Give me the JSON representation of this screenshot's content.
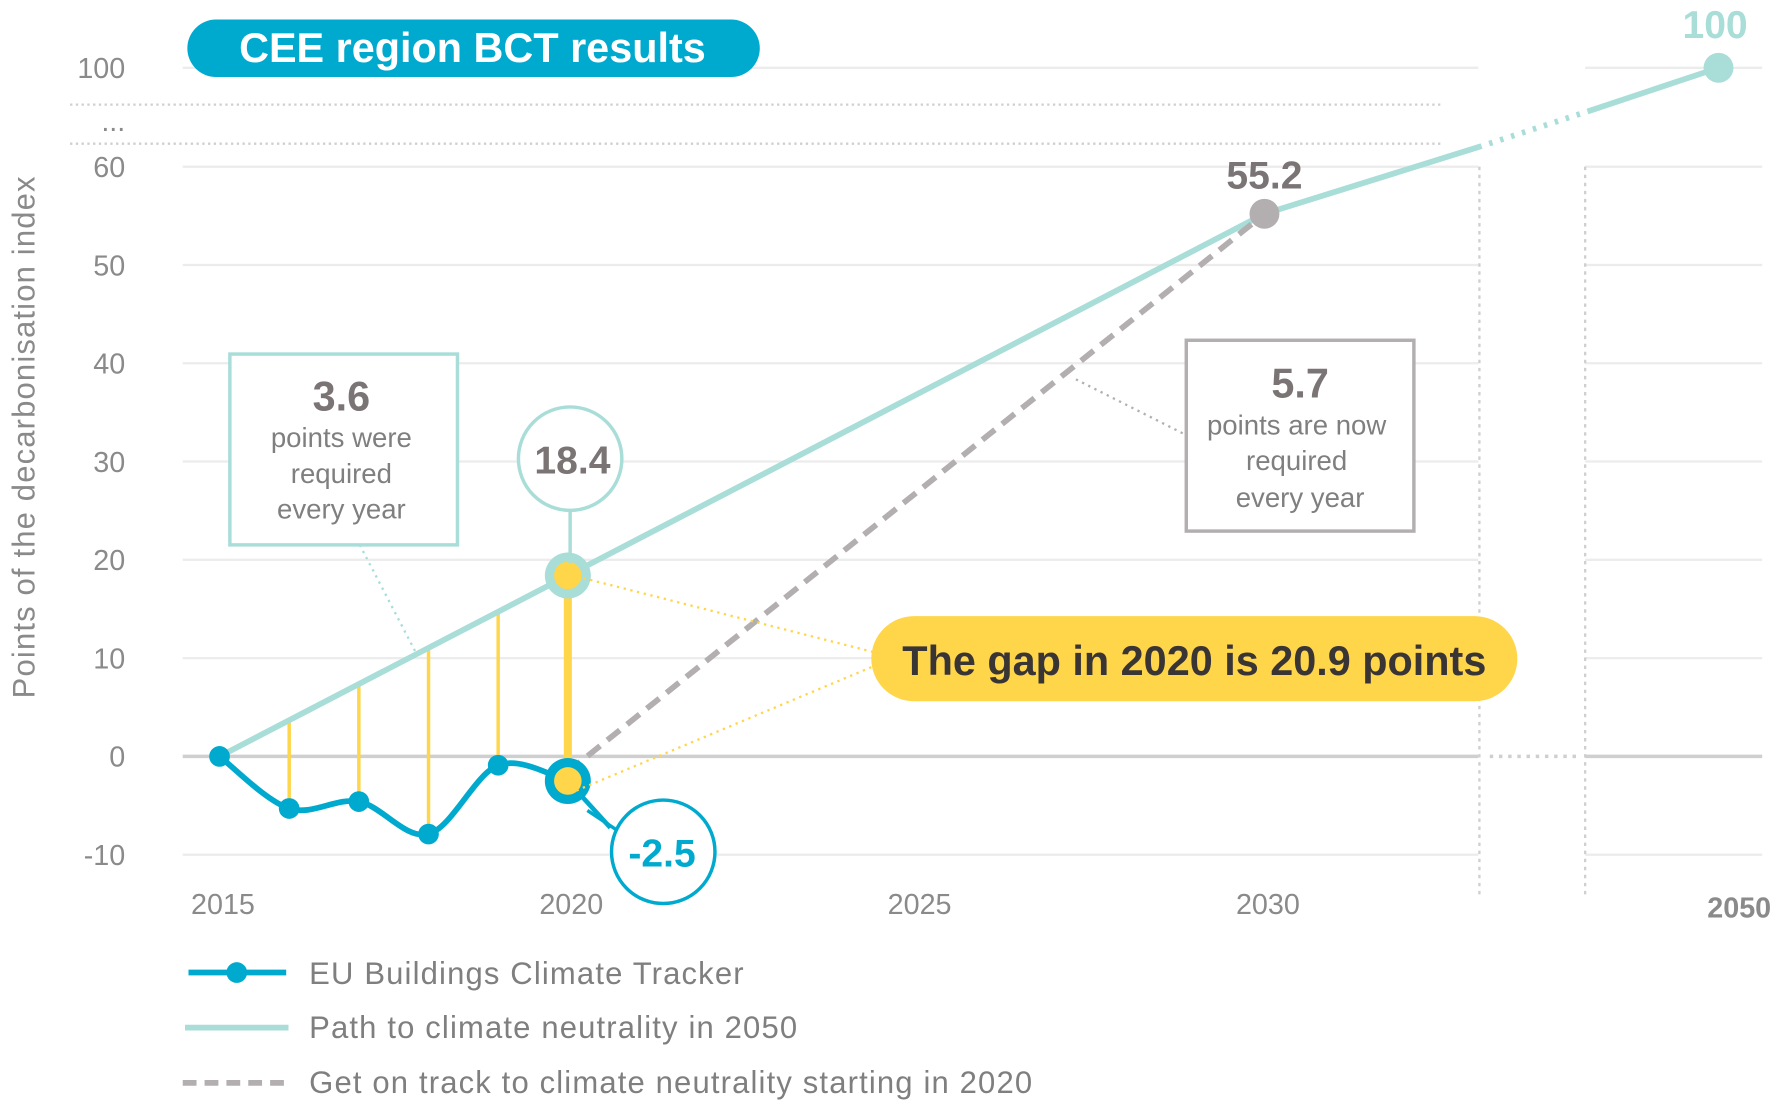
{
  "title": "CEE region BCT results",
  "chart_data": {
    "type": "line",
    "title": "CEE region BCT results",
    "ylabel": "Points of the decarbonisation index",
    "xlabel": "",
    "y_ticks": [
      "100",
      "...",
      "60",
      "50",
      "40",
      "30",
      "20",
      "10",
      "0",
      "-10"
    ],
    "x_ticks": [
      "2015",
      "2020",
      "2025",
      "2030",
      "2050"
    ],
    "ylim": [
      -10,
      100
    ],
    "y_axis_break": "between 60 and 100",
    "x_axis_break": "between 2030s and 2050",
    "grid": true,
    "legend_position": "bottom",
    "series": [
      {
        "name": "EU Buildings Climate Tracker",
        "color": "#00a9ce",
        "style": "solid-markers",
        "x": [
          2015,
          2016,
          2017,
          2018,
          2019,
          2020
        ],
        "y": [
          0,
          -5.3,
          -4.6,
          -7.9,
          -0.9,
          -2.5
        ]
      },
      {
        "name": "Path to climate neutrality in 2050",
        "color": "#a8ddd8",
        "style": "solid",
        "x": [
          2015,
          2020,
          2030,
          2050
        ],
        "y": [
          0,
          18.4,
          55.2,
          100
        ]
      },
      {
        "name": "Get on track to climate neutrality starting in 2020",
        "color": "#b3afb0",
        "style": "dashed",
        "x": [
          2020,
          2030
        ],
        "y": [
          -2.5,
          55.2
        ]
      }
    ],
    "annotations": {
      "path_2020": "18.4",
      "tracker_2020": "-2.5",
      "target_2030": "55.2",
      "target_2050": "100",
      "gap_label": "The gap in 2020 is 20.9 points",
      "required_before": {
        "value": "3.6",
        "text": [
          "points were",
          "required",
          "every year"
        ]
      },
      "required_now": {
        "value": "5.7",
        "text": [
          "points are now",
          "required",
          "every year"
        ]
      }
    },
    "colors": {
      "tracker": "#00a9ce",
      "path": "#a8ddd8",
      "ontrack": "#b3afb0",
      "gap": "#ffd54a",
      "title_bg": "#00a9ce"
    }
  }
}
